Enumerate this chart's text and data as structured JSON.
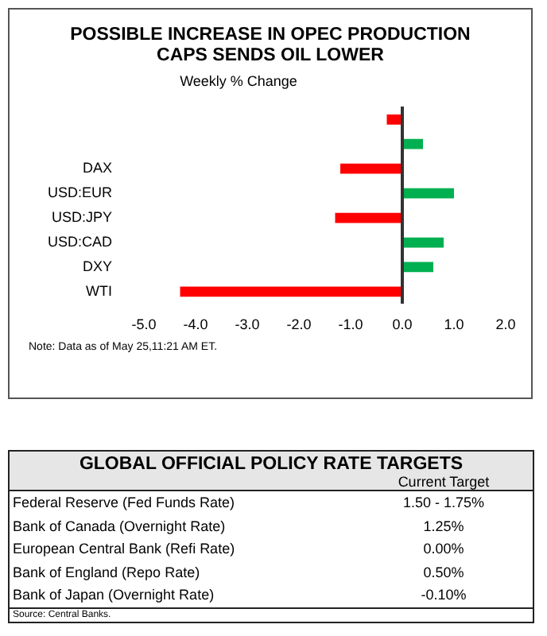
{
  "chart_data": [
    {
      "type": "bar",
      "orientation": "horizontal",
      "title": "POSSIBLE INCREASE IN OPEC PRODUCTION CAPS SENDS OIL LOWER",
      "subtitle": "Weekly % Change",
      "categories": [
        null,
        null,
        "DAX",
        "USD:EUR",
        "USD:JPY",
        "USD:CAD",
        "DXY",
        "WTI"
      ],
      "values": [
        -0.3,
        0.4,
        -1.2,
        1.0,
        -1.3,
        0.8,
        0.6,
        -4.3
      ],
      "colors": [
        "#ff0000",
        "#00b050",
        "#ff0000",
        "#00b050",
        "#ff0000",
        "#00b050",
        "#00b050",
        "#ff0000"
      ],
      "xlim": [
        -5,
        2
      ],
      "xticks": [
        {
          "value": -5,
          "label": "-5.0"
        },
        {
          "value": -4,
          "label": "-4.0"
        },
        {
          "value": -3,
          "label": "-3.0"
        },
        {
          "value": -2,
          "label": "-2.0"
        },
        {
          "value": -1,
          "label": "-1.0"
        },
        {
          "value": 0,
          "label": "0.0"
        },
        {
          "value": 1,
          "label": "1.0"
        },
        {
          "value": 2,
          "label": "2.0"
        }
      ],
      "grid": false,
      "legend": false,
      "annotations": [
        "Note: Data as of May 25,11:21 AM ET."
      ]
    },
    {
      "type": "other",
      "title": "GLOBAL OFFICIAL POLICY RATE TARGETS",
      "categories": [
        "Federal Reserve (Fed Funds Rate)",
        "Bank of Canada (Overnight Rate)",
        "European Central Bank (Refi Rate)",
        "Bank of England (Repo Rate)",
        "Bank of Japan (Overnight Rate)"
      ],
      "value_labels": [
        "1.50 - 1.75%",
        "1.25%",
        "0.00%",
        "0.50%",
        "-0.10%"
      ],
      "annotations": [
        "Current Target",
        "Source: Central Banks."
      ]
    }
  ]
}
